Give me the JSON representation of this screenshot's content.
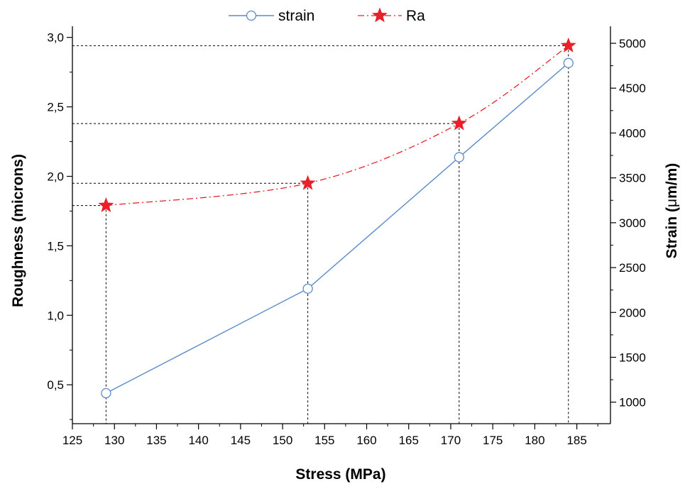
{
  "chart_data": {
    "type": "line",
    "xlabel": "Stress (MPa)",
    "xlim": [
      125,
      189
    ],
    "x_ticks": [
      125,
      130,
      135,
      140,
      145,
      150,
      155,
      160,
      165,
      170,
      175,
      180,
      185
    ],
    "y_left": {
      "label": "Roughness (microns)",
      "lim": [
        0.22,
        3.08
      ],
      "ticks": [
        0.5,
        1.0,
        1.5,
        2.0,
        2.5,
        3.0
      ],
      "tick_labels": [
        "0,5",
        "1,0",
        "1,5",
        "2,0",
        "2,5",
        "3,0"
      ]
    },
    "y_right": {
      "label_prefix": "Strain (",
      "label_mu": "μ",
      "label_suffix": "m/m)",
      "lim": [
        760,
        5190
      ],
      "ticks": [
        1000,
        1500,
        2000,
        2500,
        3000,
        3500,
        4000,
        4500,
        5000
      ],
      "tick_labels": [
        "1000",
        "1500",
        "2000",
        "2500",
        "3000",
        "3500",
        "4000",
        "4500",
        "5000"
      ]
    },
    "series": [
      {
        "name": "strain",
        "axis": "right",
        "color": "#5b8bc9",
        "marker": "open-circle",
        "line": "solid",
        "x": [
          129,
          153,
          171,
          184
        ],
        "y": [
          1100,
          2265,
          3730,
          4780
        ]
      },
      {
        "name": "Ra",
        "axis": "left",
        "color": "#e8202a",
        "marker": "star",
        "line": "dashed-curve",
        "x": [
          129,
          153,
          171,
          184
        ],
        "y": [
          1.79,
          1.95,
          2.38,
          2.94
        ]
      }
    ],
    "guide_lines": "dotted black lines from each Ra point to the left axis and down to the x axis",
    "legend_position": "top-center",
    "grid": false
  }
}
